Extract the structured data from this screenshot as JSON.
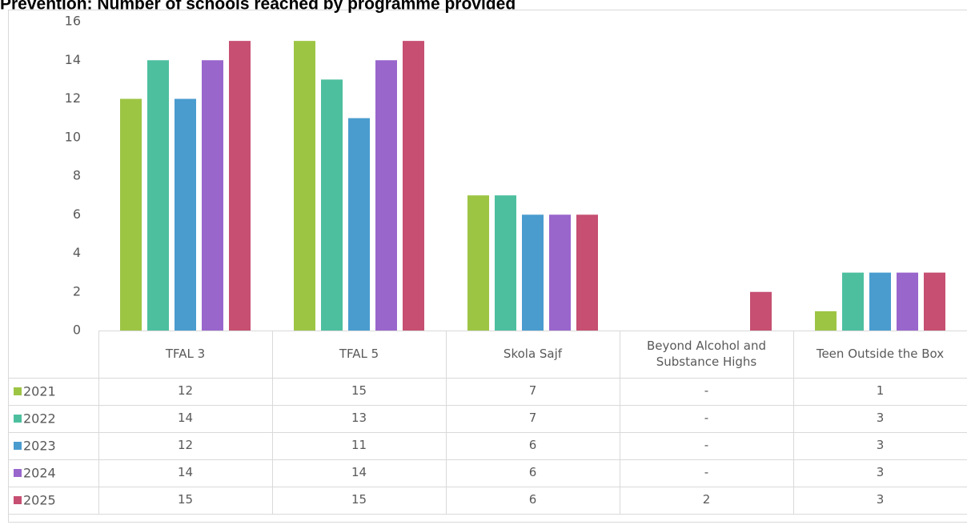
{
  "chart_data": {
    "type": "bar",
    "title": "Prevention: Number of schools reached by programme provided",
    "categories": [
      "TFAL 3",
      "TFAL 5",
      "Skola Sajf",
      "Beyond Alcohol and Substance Highs",
      "Teen Outside the Box"
    ],
    "series": [
      {
        "name": "2021",
        "color": "#9dc544",
        "values": [
          12,
          15,
          7,
          null,
          1
        ],
        "value_labels": [
          "12",
          "15",
          "7",
          "-",
          "1"
        ]
      },
      {
        "name": "2022",
        "color": "#4dbf9f",
        "values": [
          14,
          13,
          7,
          null,
          3
        ],
        "value_labels": [
          "14",
          "13",
          "7",
          "-",
          "3"
        ]
      },
      {
        "name": "2023",
        "color": "#4a9ccf",
        "values": [
          12,
          11,
          6,
          null,
          3
        ],
        "value_labels": [
          "12",
          "11",
          "6",
          "-",
          "3"
        ]
      },
      {
        "name": "2024",
        "color": "#9966cc",
        "values": [
          14,
          14,
          6,
          null,
          3
        ],
        "value_labels": [
          "14",
          "14",
          "6",
          "-",
          "3"
        ]
      },
      {
        "name": "2025",
        "color": "#c64f72",
        "values": [
          15,
          15,
          6,
          2,
          3
        ]
      }
    ],
    "ylim": [
      0,
      16
    ],
    "yticks": [
      0,
      2,
      4,
      6,
      8,
      10,
      12,
      14,
      16
    ],
    "grid": false
  }
}
